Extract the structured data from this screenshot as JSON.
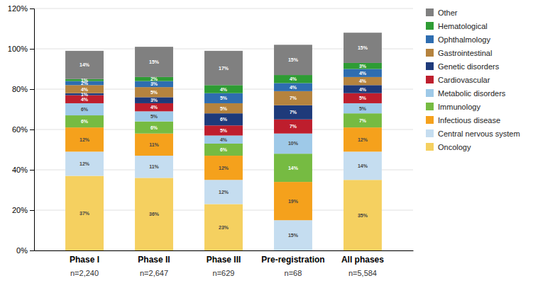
{
  "chart_data": {
    "type": "bar",
    "stacked": true,
    "categories": [
      "Phase I",
      "Phase II",
      "Phase III",
      "Pre-registration",
      "All phases"
    ],
    "annotations": [
      {
        "text": "n=2,240",
        "x": "Phase I"
      },
      {
        "text": "n=2,647",
        "x": "Phase II"
      },
      {
        "text": "n=629",
        "x": "Phase III"
      },
      {
        "text": "n=68",
        "x": "Pre-registration"
      },
      {
        "text": "n=5,584",
        "x": "All phases"
      }
    ],
    "series": [
      {
        "name": "Other",
        "color": "#808080",
        "values": [
          14,
          15,
          17,
          15,
          15
        ],
        "value_labels": [
          "14%",
          "15%",
          "17%",
          "15%",
          "15%"
        ]
      },
      {
        "name": "Hematological",
        "color": "#2e9c34",
        "values": [
          1,
          2,
          4,
          4,
          3
        ],
        "value_labels": [
          "1%",
          "2%",
          "4%",
          "4%",
          "3%"
        ]
      },
      {
        "name": "Ophthalmology",
        "color": "#2e6db0",
        "values": [
          2,
          3,
          5,
          4,
          4
        ],
        "value_labels": [
          "2%",
          "3%",
          "5%",
          "4%",
          "4%"
        ]
      },
      {
        "name": "Gastrointestinal",
        "color": "#b5833e",
        "values": [
          4,
          5,
          5,
          7,
          4
        ],
        "value_labels": [
          "4%",
          "5%",
          "5%",
          "7%",
          "4%"
        ]
      },
      {
        "name": "Genetic disorders",
        "color": "#1e3a7a",
        "values": [
          1,
          3,
          6,
          7,
          4
        ],
        "value_labels": [
          "1%",
          "3%",
          "6%",
          "7%",
          "4%"
        ]
      },
      {
        "name": "Cardiovascular",
        "color": "#be1e2d",
        "values": [
          4,
          4,
          5,
          7,
          5
        ],
        "value_labels": [
          "4%",
          "4%",
          "5%",
          "7%",
          "5%"
        ]
      },
      {
        "name": "Metabolic disorders",
        "color": "#9ec9e8",
        "values": [
          6,
          5,
          4,
          10,
          5
        ],
        "value_labels": [
          "6%",
          "5%",
          "4%",
          "10%",
          "5%"
        ]
      },
      {
        "name": "Immunology",
        "color": "#76bb42",
        "values": [
          6,
          6,
          6,
          14,
          7
        ],
        "value_labels": [
          "6%",
          "6%",
          "6%",
          "14%",
          "7%"
        ]
      },
      {
        "name": "Infectious disease",
        "color": "#f5a11c",
        "values": [
          12,
          11,
          12,
          19,
          12
        ],
        "value_labels": [
          "12%",
          "11%",
          "12%",
          "19%",
          "12%"
        ]
      },
      {
        "name": "Central nervous system",
        "color": "#c5ddf0",
        "values": [
          12,
          11,
          12,
          15,
          14
        ],
        "value_labels": [
          "12%",
          "11%",
          "12%",
          "15%",
          "14%"
        ]
      },
      {
        "name": "Oncology",
        "color": "#f5d060",
        "values": [
          37,
          36,
          23,
          0,
          35
        ],
        "value_labels": [
          "37%",
          "36%",
          "23%",
          null,
          "35%"
        ]
      }
    ],
    "ylim": [
      0,
      120
    ],
    "yticks": [
      {
        "value": 0,
        "label": "0%"
      },
      {
        "value": 20,
        "label": "20%"
      },
      {
        "value": 40,
        "label": "40%"
      },
      {
        "value": 60,
        "label": "60%"
      },
      {
        "value": 80,
        "label": "80%"
      },
      {
        "value": 100,
        "label": "100%"
      },
      {
        "value": 120,
        "label": "120%"
      }
    ],
    "grid": true,
    "data_labels": true,
    "legend": "right"
  }
}
